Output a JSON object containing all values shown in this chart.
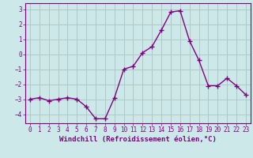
{
  "x": [
    0,
    1,
    2,
    3,
    4,
    5,
    6,
    7,
    8,
    9,
    10,
    11,
    12,
    13,
    14,
    15,
    16,
    17,
    18,
    19,
    20,
    21,
    22,
    23
  ],
  "y": [
    -3.0,
    -2.9,
    -3.1,
    -3.0,
    -2.9,
    -3.0,
    -3.5,
    -4.3,
    -4.3,
    -2.9,
    -1.0,
    -0.8,
    0.1,
    0.5,
    1.6,
    2.8,
    2.9,
    0.9,
    -0.4,
    -2.1,
    -2.1,
    -1.6,
    -2.1,
    -2.7
  ],
  "line_color": "#800080",
  "marker": "+",
  "marker_size": 4,
  "xlabel": "Windchill (Refroidissement éolien,°C)",
  "xlim": [
    -0.5,
    23.5
  ],
  "ylim": [
    -4.6,
    3.4
  ],
  "yticks": [
    -4,
    -3,
    -2,
    -1,
    0,
    1,
    2,
    3
  ],
  "xticks": [
    0,
    1,
    2,
    3,
    4,
    5,
    6,
    7,
    8,
    9,
    10,
    11,
    12,
    13,
    14,
    15,
    16,
    17,
    18,
    19,
    20,
    21,
    22,
    23
  ],
  "bg_color": "#cce8e8",
  "grid_color": "#b0c8c8",
  "spine_color": "#800080",
  "tick_color": "#800080",
  "label_color": "#800080",
  "line_width": 1.0,
  "xlabel_fontsize": 6.5,
  "tick_fontsize": 5.5
}
